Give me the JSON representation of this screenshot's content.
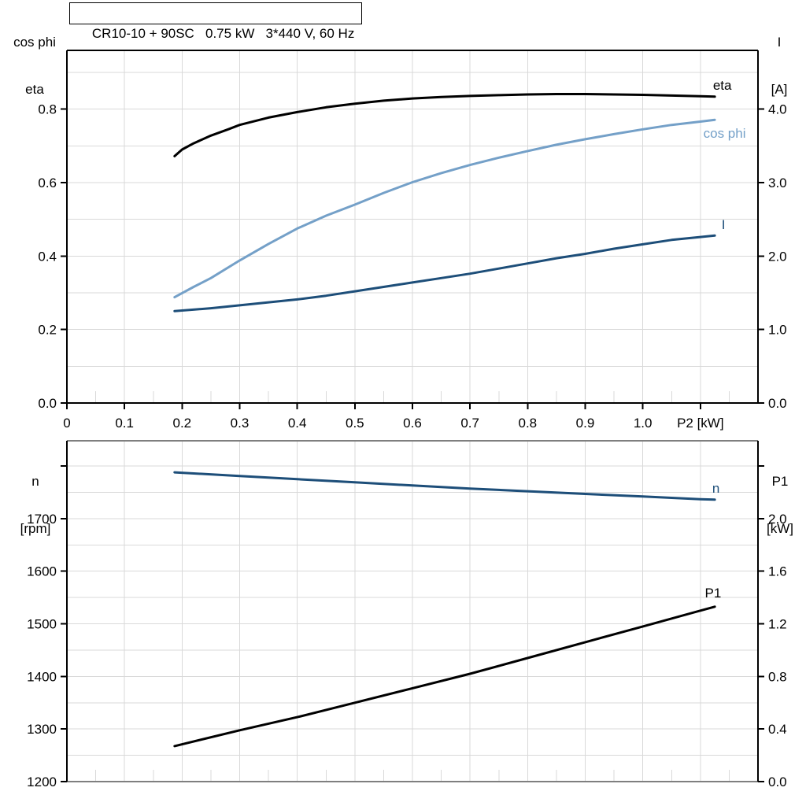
{
  "header": {
    "title": "CR10-10 + 90SC   0.75 kW   3*440 V, 60 Hz"
  },
  "colors": {
    "curve_black": "#000000",
    "curve_dark_blue": "#1d4e79",
    "curve_light_blue": "#74a0c8",
    "gridline": "#d9d9d9",
    "axis_gray": "#7f7f7f",
    "axis_black": "#000000",
    "background": "#ffffff"
  },
  "chart_data": [
    {
      "type": "line",
      "title": "CR10-10 + 90SC   0.75 kW   3*440 V, 60 Hz",
      "xlabel": "P2 [kW]",
      "xlim": [
        0,
        1.2
      ],
      "x_grid_step": 0.1,
      "x_minor_step": 0.05,
      "x_tick_values": [
        0,
        0.1,
        0.2,
        0.3,
        0.4,
        0.5,
        0.6,
        0.7,
        0.8,
        0.9,
        1.0,
        1.1
      ],
      "x_tick_labels": [
        "0",
        "0.1",
        "0.2",
        "0.3",
        "0.4",
        "0.5",
        "0.6",
        "0.7",
        "0.8",
        "0.9",
        "1.0",
        "P2 [kW]"
      ],
      "left_axis": {
        "title_lines": [
          "cos phi",
          "eta"
        ],
        "lim": [
          0,
          0.96
        ],
        "grid_step": 0.1,
        "tick_values": [
          0,
          0.2,
          0.4,
          0.6,
          0.8
        ],
        "tick_labels": [
          "0.0",
          "0.2",
          "0.4",
          "0.6",
          "0.8"
        ],
        "unlabeled_tick_values": []
      },
      "right_axis": {
        "title_lines": [
          "I",
          "[A]"
        ],
        "lim": [
          0,
          4.8
        ],
        "tick_values": [
          0,
          1,
          2,
          3,
          4
        ],
        "tick_labels": [
          "0.0",
          "1.0",
          "2.0",
          "3.0",
          "4.0"
        ],
        "unlabeled_tick_values": []
      },
      "series": [
        {
          "name": "eta",
          "axis": "left",
          "color": "#000000",
          "label": {
            "text": "eta",
            "x": 1.138,
            "y": 0.853
          },
          "points": [
            [
              0.187,
              0.672
            ],
            [
              0.2,
              0.69
            ],
            [
              0.22,
              0.707
            ],
            [
              0.25,
              0.728
            ],
            [
              0.28,
              0.745
            ],
            [
              0.3,
              0.757
            ],
            [
              0.35,
              0.777
            ],
            [
              0.4,
              0.792
            ],
            [
              0.45,
              0.805
            ],
            [
              0.5,
              0.815
            ],
            [
              0.55,
              0.823
            ],
            [
              0.6,
              0.829
            ],
            [
              0.65,
              0.833
            ],
            [
              0.7,
              0.836
            ],
            [
              0.75,
              0.838
            ],
            [
              0.8,
              0.84
            ],
            [
              0.85,
              0.841
            ],
            [
              0.9,
              0.841
            ],
            [
              0.95,
              0.84
            ],
            [
              1.0,
              0.839
            ],
            [
              1.05,
              0.837
            ],
            [
              1.1,
              0.835
            ],
            [
              1.125,
              0.834
            ]
          ]
        },
        {
          "name": "cos phi",
          "axis": "left",
          "color": "#74a0c8",
          "label": {
            "text": "cos phi",
            "x": 1.142,
            "y": 0.722
          },
          "points": [
            [
              0.187,
              0.288
            ],
            [
              0.22,
              0.316
            ],
            [
              0.25,
              0.34
            ],
            [
              0.3,
              0.388
            ],
            [
              0.35,
              0.433
            ],
            [
              0.4,
              0.475
            ],
            [
              0.45,
              0.51
            ],
            [
              0.5,
              0.54
            ],
            [
              0.55,
              0.572
            ],
            [
              0.6,
              0.601
            ],
            [
              0.65,
              0.626
            ],
            [
              0.7,
              0.648
            ],
            [
              0.75,
              0.668
            ],
            [
              0.8,
              0.686
            ],
            [
              0.85,
              0.703
            ],
            [
              0.9,
              0.718
            ],
            [
              0.95,
              0.732
            ],
            [
              1.0,
              0.745
            ],
            [
              1.05,
              0.757
            ],
            [
              1.1,
              0.766
            ],
            [
              1.125,
              0.771
            ]
          ]
        },
        {
          "name": "I",
          "axis": "right",
          "color": "#1d4e79",
          "label": {
            "text": "I",
            "x": 1.14,
            "y": 2.368
          },
          "points": [
            [
              0.187,
              1.25
            ],
            [
              0.25,
              1.29
            ],
            [
              0.3,
              1.33
            ],
            [
              0.35,
              1.37
            ],
            [
              0.4,
              1.41
            ],
            [
              0.45,
              1.46
            ],
            [
              0.5,
              1.52
            ],
            [
              0.55,
              1.58
            ],
            [
              0.6,
              1.64
            ],
            [
              0.65,
              1.7
            ],
            [
              0.7,
              1.76
            ],
            [
              0.75,
              1.83
            ],
            [
              0.8,
              1.9
            ],
            [
              0.85,
              1.97
            ],
            [
              0.9,
              2.03
            ],
            [
              0.95,
              2.1
            ],
            [
              1.0,
              2.16
            ],
            [
              1.05,
              2.22
            ],
            [
              1.1,
              2.26
            ],
            [
              1.125,
              2.28
            ]
          ]
        }
      ]
    },
    {
      "type": "line",
      "title": "",
      "xlabel": "",
      "xlim": [
        0,
        1.2
      ],
      "x_grid_step": 0.1,
      "x_minor_step": 0.05,
      "x_tick_values": [],
      "x_tick_labels": [],
      "left_axis": {
        "title_lines": [
          "n",
          "[rpm]"
        ],
        "lim": [
          1200,
          1848
        ],
        "grid_step": 50,
        "tick_values": [
          1200,
          1300,
          1400,
          1500,
          1600,
          1700
        ],
        "tick_labels": [
          "1200",
          "1300",
          "1400",
          "1500",
          "1600",
          "1700"
        ],
        "unlabeled_tick_values": [
          1800
        ]
      },
      "right_axis": {
        "title_lines": [
          "P1",
          "[kW]"
        ],
        "lim": [
          0,
          2.592
        ],
        "tick_values": [
          0,
          0.4,
          0.8,
          1.2,
          1.6,
          2.0
        ],
        "tick_labels": [
          "0.0",
          "0.4",
          "0.8",
          "1.2",
          "1.6",
          "2.0"
        ],
        "unlabeled_tick_values": [
          2.4
        ]
      },
      "series": [
        {
          "name": "n",
          "axis": "left",
          "color": "#1d4e79",
          "label": {
            "text": "n",
            "x": 1.127,
            "y": 1749
          },
          "points": [
            [
              0.187,
              1788
            ],
            [
              0.3,
              1781
            ],
            [
              0.4,
              1775
            ],
            [
              0.5,
              1769
            ],
            [
              0.6,
              1763
            ],
            [
              0.7,
              1757
            ],
            [
              0.8,
              1752
            ],
            [
              0.9,
              1747
            ],
            [
              1.0,
              1742
            ],
            [
              1.1,
              1737
            ],
            [
              1.125,
              1736
            ]
          ]
        },
        {
          "name": "P1",
          "axis": "right",
          "color": "#000000",
          "label": {
            "text": "P1",
            "x": 1.122,
            "y": 1.401
          },
          "points": [
            [
              0.187,
              0.27
            ],
            [
              0.3,
              0.39
            ],
            [
              0.4,
              0.49
            ],
            [
              0.5,
              0.6
            ],
            [
              0.6,
              0.71
            ],
            [
              0.7,
              0.82
            ],
            [
              0.8,
              0.94
            ],
            [
              0.9,
              1.06
            ],
            [
              1.0,
              1.18
            ],
            [
              1.1,
              1.3
            ],
            [
              1.125,
              1.33
            ]
          ]
        }
      ]
    }
  ]
}
